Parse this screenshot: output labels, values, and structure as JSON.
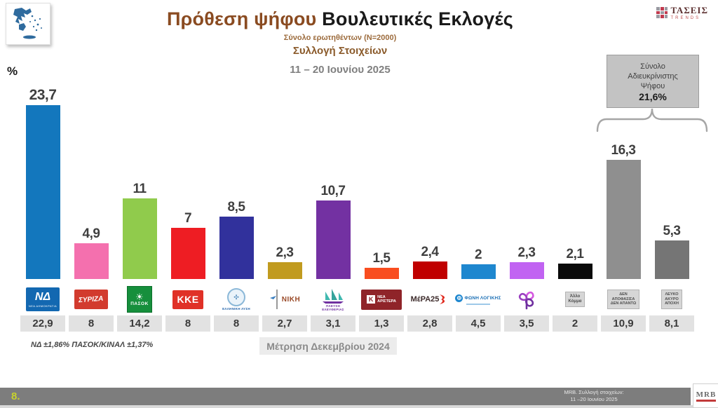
{
  "header": {
    "title_primary": "Πρόθεση ψήφου",
    "title_secondary": "Βουλευτικές Εκλογές",
    "sample": "Σύνολο ερωτηθέντων (N=2000)",
    "collection_label": "Συλλογή Στοιχείων",
    "collection_dates": "11 – 20 Ιουνίου 2025"
  },
  "brand": {
    "name": "ΤΑΣΕΙΣ",
    "subname": "TRENDS"
  },
  "axis": {
    "percent_label": "%"
  },
  "unclear_vote_box": {
    "lines": [
      "Σύνολο",
      "Αδιευκρίνιστης",
      "Ψήφου"
    ],
    "value": "21,6%"
  },
  "chart_data": {
    "type": "bar",
    "title": "Πρόθεση ψήφου Βουλευτικές Εκλογές",
    "unit": "%",
    "ylim": [
      0,
      25
    ],
    "grid": false,
    "legend_position": "none",
    "categories": [
      "ΝΔ",
      "ΣΥΡΙΖΑ",
      "ΠΑΣΟΚ",
      "ΚΚΕ",
      "ΕΛΛΗΝΙΚΗ ΛΥΣΗ",
      "ΝΙΚΗ",
      "ΠΛΕΥΣΗ ΕΛΕΥΘΕΡΙΑΣ",
      "ΝΕΑ ΑΡΙΣΤΕΡΑ",
      "ΜέΡΑ25",
      "ΦΩΝΗ ΛΟΓΙΚΗΣ",
      "ΚΙΝΗΜΑ ΔΗΜΟΚΡΑΤΙΑΣ",
      "Άλλο Κόμμα",
      "ΔΕΝ ΑΠΟΦΑΣΙΣΑ ΔΕΝ ΑΠΑΝΤΩ",
      "ΛΕΥΚΟ ΑΚΥΡΟ ΑΠΟΧΗ"
    ],
    "series": [
      {
        "name": "Συλλογή Στοιχείων 11 – 20 Ιουνίου 2025",
        "values": [
          23.7,
          4.9,
          11,
          7,
          8.5,
          2.3,
          10.7,
          1.5,
          2.4,
          2,
          2.3,
          2.1,
          16.3,
          5.3
        ]
      },
      {
        "name": "Μέτρηση Δεκεμβρίου 2024",
        "values": [
          22.9,
          8,
          14.2,
          8,
          8,
          2.7,
          3.1,
          1.3,
          2.8,
          4.5,
          3.5,
          2,
          10.9,
          8.1
        ]
      }
    ],
    "annotation": {
      "label": "Σύνολο Αδιευκρίνιστης Ψήφου",
      "value": 21.6,
      "covers": [
        "ΔΕΝ ΑΠΟΦΑΣΙΣΑ ΔΕΝ ΑΠΑΝΤΩ",
        "ΛΕΥΚΟ ΑΚΥΡΟ ΑΠΟΧΗ"
      ]
    }
  },
  "parties": [
    {
      "slug": "nd",
      "name": "ΝΔ",
      "color": "#1377bd",
      "num": 23.7,
      "value": "23,7",
      "prev": "22,9",
      "logo": {
        "kind": "nd",
        "lines": [
          "ΝΔ",
          "ΝΕΑ ΔΗΜΟΚΡΑΤΙΑ"
        ]
      }
    },
    {
      "slug": "syriza",
      "name": "ΣΥΡΙΖΑ",
      "color": "#f470ae",
      "num": 4.9,
      "value": "4,9",
      "prev": "8",
      "logo": {
        "kind": "syriza",
        "lines": [
          "ΣΥΡΙΖΑ"
        ]
      }
    },
    {
      "slug": "pasok",
      "name": "ΠΑΣΟΚ",
      "color": "#90cb4c",
      "num": 11,
      "value": "11",
      "prev": "14,2",
      "logo": {
        "kind": "pasok",
        "lines": [
          "ΠΑΣΟΚ"
        ]
      }
    },
    {
      "slug": "kke",
      "name": "ΚΚΕ",
      "color": "#ee1d23",
      "num": 7,
      "value": "7",
      "prev": "8",
      "logo": {
        "kind": "kke",
        "lines": [
          "ΚΚΕ"
        ]
      }
    },
    {
      "slug": "elliniki-lysi",
      "name": "ΕΛΛΗΝΙΚΗ ΛΥΣΗ",
      "color": "#31319c",
      "num": 8.5,
      "value": "8,5",
      "prev": "8",
      "logo": {
        "kind": "el",
        "lines": [
          "ΕΛΛΗΝΙΚΗ ΛΥΣΗ"
        ]
      }
    },
    {
      "slug": "niki",
      "name": "ΝΙΚΗ",
      "color": "#c19b1f",
      "num": 2.3,
      "value": "2,3",
      "prev": "2,7",
      "logo": {
        "kind": "niki",
        "lines": [
          "ΝΙΚΗ"
        ]
      }
    },
    {
      "slug": "plefsi-eleftherias",
      "name": "ΠΛΕΥΣΗ ΕΛΕΥΘΕΡΙΑΣ",
      "color": "#7331a2",
      "num": 10.7,
      "value": "10,7",
      "prev": "3,1",
      "logo": {
        "kind": "plefsi",
        "lines": [
          "ΠΛΕΥΣΗ",
          "ΕΛΕΥΘΕΡΙΑΣ"
        ]
      }
    },
    {
      "slug": "nea-aristera",
      "name": "ΝΕΑ ΑΡΙΣΤΕΡΑ",
      "color": "#f94d1f",
      "num": 1.5,
      "value": "1,5",
      "prev": "1,3",
      "logo": {
        "kind": "na",
        "lines": [
          "ΝΕΑ",
          "ΑΡΙΣΤΕΡΑ"
        ]
      }
    },
    {
      "slug": "mera25",
      "name": "ΜέΡΑ25",
      "color": "#c00000",
      "num": 2.4,
      "value": "2,4",
      "prev": "2,8",
      "logo": {
        "kind": "mera",
        "lines": [
          "ΜέΡΑ25"
        ]
      }
    },
    {
      "slug": "foni-logikis",
      "name": "ΦΩΝΗ ΛΟΓΙΚΗΣ",
      "color": "#1e87cf",
      "num": 2,
      "value": "2",
      "prev": "4,5",
      "logo": {
        "kind": "foni",
        "lines": [
          "ΦΩΝΗ ΛΟΓΙΚΗΣ"
        ]
      }
    },
    {
      "slug": "kinima-dimokratias",
      "name": "ΚΙΝΗΜΑ ΔΗΜΟΚΡΑΤΙΑΣ",
      "color": "#c163f2",
      "num": 2.3,
      "value": "2,3",
      "prev": "3,5",
      "logo": {
        "kind": "kinima",
        "lines": []
      }
    },
    {
      "slug": "allo-komma",
      "name": "Άλλο Κόμμα",
      "color": "#0a0a0a",
      "num": 2.1,
      "value": "2,1",
      "prev": "2",
      "logo": {
        "kind": "graybox",
        "lines": [
          "Άλλο",
          "Κόμμα"
        ]
      }
    },
    {
      "slug": "den-apofasisa",
      "name": "ΔΕΝ ΑΠΟΦΑΣΙΣΑ ΔΕΝ ΑΠΑΝΤΩ",
      "color": "#8f8f8f",
      "num": 16.3,
      "value": "16,3",
      "prev": "10,9",
      "logo": {
        "kind": "graybox-small",
        "lines": [
          "ΔΕΝ",
          "ΑΠΟΦΑΣΙΣΑ",
          "ΔΕΝ ΑΠΑΝΤΩ"
        ]
      }
    },
    {
      "slug": "leyko-akyro",
      "name": "ΛΕΥΚΟ ΑΚΥΡΟ ΑΠΟΧΗ",
      "color": "#757575",
      "num": 5.3,
      "value": "5,3",
      "prev": "8,1",
      "logo": {
        "kind": "graybox-small",
        "lines": [
          "ΛΕΥΚΟ",
          "ΑΚΥΡΟ",
          "ΑΠΟΧΗ"
        ]
      }
    }
  ],
  "notes": {
    "margin_of_error": "ΝΔ ±1,86% ΠΑΣΟΚ/ΚΙΝΑΛ ±1,37%",
    "previous_measure": "Μέτρηση Δεκεμβρίου 2024"
  },
  "footer": {
    "page_number": "8.",
    "source_line1": "MRB. Συλλογή στοιχείων:",
    "source_line2": "11 –20 Ιουνίου 2025",
    "logo": "MRB"
  }
}
